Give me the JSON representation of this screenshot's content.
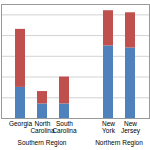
{
  "chart_data": {
    "type": "bar",
    "stacked": true,
    "grid": true,
    "tick_labels": "x",
    "categories": [
      "Georgia",
      "North Carolina",
      "South Carolina",
      null,
      "New York",
      "New Jersey"
    ],
    "series": [
      {
        "color": "#4f81bd",
        "values": [
          15,
          7,
          7,
          null,
          35,
          34
        ]
      },
      {
        "color": "#c0504d",
        "values": [
          28,
          6,
          13,
          null,
          17,
          17
        ]
      }
    ],
    "ylim": [
      0,
      55
    ],
    "yticks": [
      0,
      10,
      20,
      30,
      40,
      50
    ],
    "groups": [
      {
        "name": "Southern Region",
        "categories": [
          "Georgia",
          "North Carolina",
          "South Carolina"
        ]
      },
      {
        "name": "Northern Region",
        "categories": [
          "New York",
          "New Jersey"
        ]
      }
    ]
  }
}
